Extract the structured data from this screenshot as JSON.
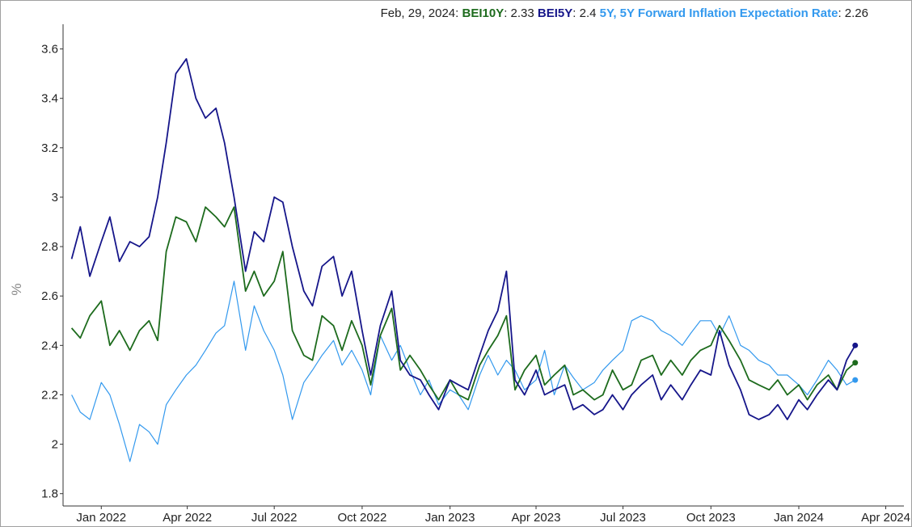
{
  "legend": {
    "date": "Feb, 29, 2024",
    "bei10y_name": "BEI10Y",
    "bei10y_value": "2.33",
    "bei5y_name": "BEI5Y",
    "bei5y_value": "2.4",
    "fwd_name": "5Y, 5Y Forward Inflation Expectation Rate",
    "fwd_value": "2.26"
  },
  "chart_data": {
    "type": "line",
    "ylabel": "%",
    "xlabel": "",
    "ylim": [
      1.75,
      3.7
    ],
    "xlim": [
      "2021-11-22",
      "2024-04-20"
    ],
    "yticks": [
      1.8,
      2,
      2.2,
      2.4,
      2.6,
      2.8,
      3,
      3.2,
      3.4,
      3.6
    ],
    "ytick_labels": [
      "1.8",
      "2",
      "2.2",
      "2.4",
      "2.6",
      "2.8",
      "3",
      "3.2",
      "3.4",
      "3.6"
    ],
    "xticks": [
      "Jan 2022",
      "Apr 2022",
      "Jul 2022",
      "Oct 2022",
      "Jan 2023",
      "Apr 2023",
      "Jul 2023",
      "Oct 2023",
      "Jan 2024",
      "Apr 2024"
    ],
    "xtick_dates": [
      "2022-01-01",
      "2022-04-01",
      "2022-07-01",
      "2022-10-01",
      "2023-01-01",
      "2023-04-01",
      "2023-07-01",
      "2023-10-01",
      "2024-01-01",
      "2024-04-01"
    ],
    "grid": false,
    "legend_position": "top-right",
    "series": [
      {
        "name": "5Y, 5Y Forward Inflation Expectation Rate",
        "color": "#3399ee",
        "x": [
          "2021-12-01",
          "2021-12-10",
          "2021-12-20",
          "2022-01-01",
          "2022-01-10",
          "2022-01-20",
          "2022-01-31",
          "2022-02-10",
          "2022-02-20",
          "2022-03-01",
          "2022-03-10",
          "2022-03-20",
          "2022-03-31",
          "2022-04-10",
          "2022-04-20",
          "2022-05-01",
          "2022-05-10",
          "2022-05-20",
          "2022-06-01",
          "2022-06-10",
          "2022-06-20",
          "2022-07-01",
          "2022-07-10",
          "2022-07-20",
          "2022-08-01",
          "2022-08-10",
          "2022-08-20",
          "2022-09-01",
          "2022-09-10",
          "2022-09-20",
          "2022-10-01",
          "2022-10-10",
          "2022-10-20",
          "2022-11-01",
          "2022-11-10",
          "2022-11-20",
          "2022-12-01",
          "2022-12-10",
          "2022-12-20",
          "2023-01-01",
          "2023-01-10",
          "2023-01-20",
          "2023-02-01",
          "2023-02-10",
          "2023-02-20",
          "2023-03-01",
          "2023-03-10",
          "2023-03-20",
          "2023-04-01",
          "2023-04-10",
          "2023-04-20",
          "2023-05-01",
          "2023-05-10",
          "2023-05-20",
          "2023-06-01",
          "2023-06-10",
          "2023-06-20",
          "2023-07-01",
          "2023-07-10",
          "2023-07-20",
          "2023-08-01",
          "2023-08-10",
          "2023-08-20",
          "2023-09-01",
          "2023-09-10",
          "2023-09-20",
          "2023-10-01",
          "2023-10-10",
          "2023-10-20",
          "2023-11-01",
          "2023-11-10",
          "2023-11-20",
          "2023-12-01",
          "2023-12-10",
          "2023-12-20",
          "2024-01-01",
          "2024-01-10",
          "2024-01-20",
          "2024-02-01",
          "2024-02-10",
          "2024-02-20",
          "2024-02-29"
        ],
        "values": [
          2.2,
          2.13,
          2.1,
          2.25,
          2.2,
          2.08,
          1.93,
          2.08,
          2.05,
          2.0,
          2.16,
          2.22,
          2.28,
          2.32,
          2.38,
          2.45,
          2.48,
          2.66,
          2.38,
          2.56,
          2.46,
          2.38,
          2.28,
          2.1,
          2.25,
          2.3,
          2.36,
          2.42,
          2.32,
          2.38,
          2.3,
          2.2,
          2.44,
          2.34,
          2.4,
          2.3,
          2.2,
          2.26,
          2.16,
          2.22,
          2.2,
          2.14,
          2.28,
          2.36,
          2.28,
          2.34,
          2.3,
          2.22,
          2.26,
          2.38,
          2.2,
          2.32,
          2.27,
          2.22,
          2.25,
          2.3,
          2.34,
          2.38,
          2.5,
          2.52,
          2.5,
          2.46,
          2.44,
          2.4,
          2.45,
          2.5,
          2.5,
          2.44,
          2.52,
          2.4,
          2.38,
          2.34,
          2.32,
          2.28,
          2.28,
          2.24,
          2.2,
          2.26,
          2.34,
          2.3,
          2.24,
          2.26
        ]
      },
      {
        "name": "BEI10Y",
        "color": "#1d6b1d",
        "x": [
          "2021-12-01",
          "2021-12-10",
          "2021-12-20",
          "2022-01-01",
          "2022-01-10",
          "2022-01-20",
          "2022-01-31",
          "2022-02-10",
          "2022-02-20",
          "2022-03-01",
          "2022-03-10",
          "2022-03-20",
          "2022-03-31",
          "2022-04-10",
          "2022-04-20",
          "2022-05-01",
          "2022-05-10",
          "2022-05-20",
          "2022-06-01",
          "2022-06-10",
          "2022-06-20",
          "2022-07-01",
          "2022-07-10",
          "2022-07-20",
          "2022-08-01",
          "2022-08-10",
          "2022-08-20",
          "2022-09-01",
          "2022-09-10",
          "2022-09-20",
          "2022-10-01",
          "2022-10-10",
          "2022-10-20",
          "2022-11-01",
          "2022-11-10",
          "2022-11-20",
          "2022-12-01",
          "2022-12-10",
          "2022-12-20",
          "2023-01-01",
          "2023-01-10",
          "2023-01-20",
          "2023-02-01",
          "2023-02-10",
          "2023-02-20",
          "2023-03-01",
          "2023-03-10",
          "2023-03-20",
          "2023-04-01",
          "2023-04-10",
          "2023-04-20",
          "2023-05-01",
          "2023-05-10",
          "2023-05-20",
          "2023-06-01",
          "2023-06-10",
          "2023-06-20",
          "2023-07-01",
          "2023-07-10",
          "2023-07-20",
          "2023-08-01",
          "2023-08-10",
          "2023-08-20",
          "2023-09-01",
          "2023-09-10",
          "2023-09-20",
          "2023-10-01",
          "2023-10-10",
          "2023-10-20",
          "2023-11-01",
          "2023-11-10",
          "2023-11-20",
          "2023-12-01",
          "2023-12-10",
          "2023-12-20",
          "2024-01-01",
          "2024-01-10",
          "2024-01-20",
          "2024-02-01",
          "2024-02-10",
          "2024-02-20",
          "2024-02-29"
        ],
        "values": [
          2.47,
          2.43,
          2.52,
          2.58,
          2.4,
          2.46,
          2.38,
          2.46,
          2.5,
          2.42,
          2.78,
          2.92,
          2.9,
          2.82,
          2.96,
          2.92,
          2.88,
          2.96,
          2.62,
          2.7,
          2.6,
          2.66,
          2.78,
          2.46,
          2.36,
          2.34,
          2.52,
          2.48,
          2.38,
          2.5,
          2.4,
          2.24,
          2.44,
          2.55,
          2.3,
          2.36,
          2.3,
          2.24,
          2.18,
          2.26,
          2.2,
          2.18,
          2.32,
          2.38,
          2.44,
          2.52,
          2.22,
          2.3,
          2.36,
          2.24,
          2.28,
          2.32,
          2.2,
          2.22,
          2.18,
          2.2,
          2.3,
          2.22,
          2.24,
          2.34,
          2.36,
          2.28,
          2.34,
          2.28,
          2.34,
          2.38,
          2.4,
          2.48,
          2.42,
          2.34,
          2.26,
          2.24,
          2.22,
          2.26,
          2.2,
          2.24,
          2.18,
          2.24,
          2.28,
          2.22,
          2.3,
          2.33
        ]
      },
      {
        "name": "BEI5Y",
        "color": "#16168a",
        "x": [
          "2021-12-01",
          "2021-12-10",
          "2021-12-20",
          "2022-01-01",
          "2022-01-10",
          "2022-01-20",
          "2022-01-31",
          "2022-02-10",
          "2022-02-20",
          "2022-03-01",
          "2022-03-10",
          "2022-03-20",
          "2022-03-31",
          "2022-04-10",
          "2022-04-20",
          "2022-05-01",
          "2022-05-10",
          "2022-05-20",
          "2022-06-01",
          "2022-06-10",
          "2022-06-20",
          "2022-07-01",
          "2022-07-10",
          "2022-07-20",
          "2022-08-01",
          "2022-08-10",
          "2022-08-20",
          "2022-09-01",
          "2022-09-10",
          "2022-09-20",
          "2022-10-01",
          "2022-10-10",
          "2022-10-20",
          "2022-11-01",
          "2022-11-10",
          "2022-11-20",
          "2022-12-01",
          "2022-12-10",
          "2022-12-20",
          "2023-01-01",
          "2023-01-10",
          "2023-01-20",
          "2023-02-01",
          "2023-02-10",
          "2023-02-20",
          "2023-03-01",
          "2023-03-10",
          "2023-03-20",
          "2023-04-01",
          "2023-04-10",
          "2023-04-20",
          "2023-05-01",
          "2023-05-10",
          "2023-05-20",
          "2023-06-01",
          "2023-06-10",
          "2023-06-20",
          "2023-07-01",
          "2023-07-10",
          "2023-07-20",
          "2023-08-01",
          "2023-08-10",
          "2023-08-20",
          "2023-09-01",
          "2023-09-10",
          "2023-09-20",
          "2023-10-01",
          "2023-10-10",
          "2023-10-20",
          "2023-11-01",
          "2023-11-10",
          "2023-11-20",
          "2023-12-01",
          "2023-12-10",
          "2023-12-20",
          "2024-01-01",
          "2024-01-10",
          "2024-01-20",
          "2024-02-01",
          "2024-02-10",
          "2024-02-20",
          "2024-02-29"
        ],
        "values": [
          2.75,
          2.88,
          2.68,
          2.82,
          2.92,
          2.74,
          2.82,
          2.8,
          2.84,
          3.0,
          3.22,
          3.5,
          3.56,
          3.4,
          3.32,
          3.36,
          3.22,
          3.0,
          2.7,
          2.86,
          2.82,
          3.0,
          2.98,
          2.8,
          2.62,
          2.56,
          2.72,
          2.76,
          2.6,
          2.7,
          2.46,
          2.28,
          2.48,
          2.62,
          2.34,
          2.28,
          2.26,
          2.2,
          2.14,
          2.26,
          2.24,
          2.22,
          2.36,
          2.46,
          2.54,
          2.7,
          2.26,
          2.2,
          2.3,
          2.2,
          2.22,
          2.24,
          2.14,
          2.16,
          2.12,
          2.14,
          2.2,
          2.14,
          2.2,
          2.24,
          2.28,
          2.18,
          2.24,
          2.18,
          2.24,
          2.3,
          2.28,
          2.46,
          2.32,
          2.22,
          2.12,
          2.1,
          2.12,
          2.16,
          2.1,
          2.18,
          2.14,
          2.2,
          2.26,
          2.22,
          2.34,
          2.4
        ]
      }
    ]
  }
}
